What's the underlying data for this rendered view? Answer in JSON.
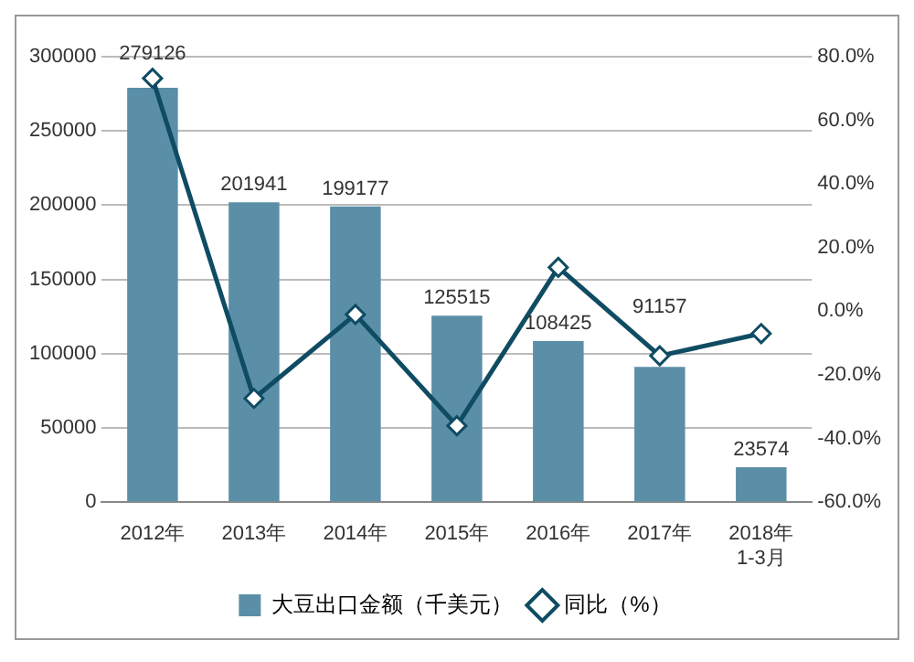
{
  "chart_data": {
    "type": "bar",
    "categories": [
      "2012年",
      "2013年",
      "2014年",
      "2015年",
      "2016年",
      "2017年",
      "2018年\n1-3月"
    ],
    "series": [
      {
        "name": "大豆出口金额（千美元）",
        "type": "bar",
        "color": "#5b8fa8",
        "values": [
          279126,
          201941,
          199177,
          125515,
          108425,
          91157,
          23574
        ],
        "value_labels": [
          "279126",
          "201941",
          "199177",
          "125515",
          "108425",
          "91157",
          "23574"
        ]
      },
      {
        "name": "同比（%）",
        "type": "line",
        "axis": "y2",
        "color": "#0f4c63",
        "values": [
          73.2,
          -27.4,
          -1,
          -36,
          13.8,
          -14,
          -7
        ]
      }
    ],
    "ylim": [
      0,
      300000
    ],
    "yticks": [
      0,
      50000,
      100000,
      150000,
      200000,
      250000,
      300000
    ],
    "y2lim": [
      -60,
      80
    ],
    "y2ticks": [
      {
        "value": -60,
        "label": "-60.0%"
      },
      {
        "value": -40,
        "label": "-40.0%"
      },
      {
        "value": -20,
        "label": "-20.0%"
      },
      {
        "value": 0,
        "label": "0.0%"
      },
      {
        "value": 20,
        "label": "20.0%"
      },
      {
        "value": 40,
        "label": "40.0%"
      },
      {
        "value": 60,
        "label": "60.0%"
      },
      {
        "value": 80,
        "label": "80.0%"
      }
    ],
    "grid": "y",
    "legend": "bottom",
    "marker": "diamond"
  }
}
